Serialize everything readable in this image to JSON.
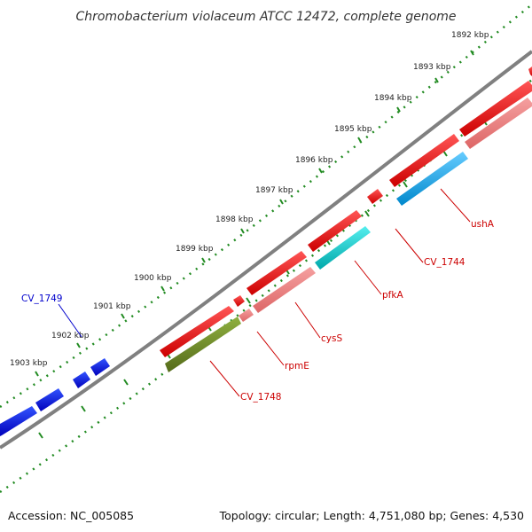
{
  "title": "Chromobacterium violaceum ATCC 12472, complete genome",
  "footer": {
    "accession": "Accession: NC_005085",
    "summary": "Topology: circular; Length: 4,751,080 bp; Genes: 4,530"
  },
  "ticks": [
    "1892 kbp",
    "1893 kbp",
    "1894 kbp",
    "1895 kbp",
    "1896 kbp",
    "1897 kbp",
    "1898 kbp",
    "1899 kbp",
    "1900 kbp",
    "1901 kbp",
    "1902 kbp",
    "1903 kbp"
  ],
  "gene_labels": {
    "cv1749": "CV_1749",
    "usha": "ushA",
    "cv1744": "CV_1744",
    "pfka": "pfkA",
    "cyss": "cysS",
    "rpme": "rpmE",
    "cv1748": "CV_1748"
  },
  "colors": {
    "forward": "#ee0000",
    "forward_light": "#ee8080",
    "reverse_blue": "#0000dd",
    "cyan": "#00c8cc",
    "sky": "#22aaee",
    "olive": "#6b8e23",
    "tick_green": "#228b22",
    "backbone": "#808080"
  }
}
